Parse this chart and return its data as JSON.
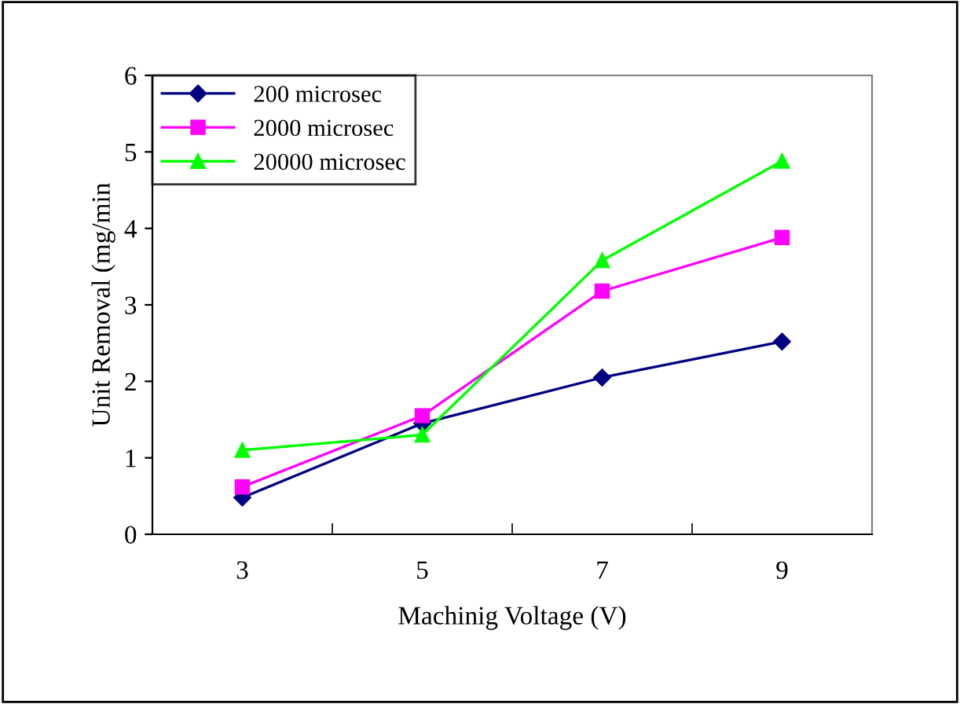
{
  "chart_data": {
    "type": "line",
    "xlabel": "Machinig Voltage (V)",
    "ylabel": "Unit Removal (mg/min",
    "categories": [
      "3",
      "5",
      "7",
      "9"
    ],
    "series": [
      {
        "name": "200 microsec",
        "color": "#000080",
        "marker": "diamond",
        "values": [
          0.48,
          1.45,
          2.05,
          2.52
        ]
      },
      {
        "name": "2000 microsec",
        "color": "#ff00ff",
        "marker": "square",
        "values": [
          0.62,
          1.55,
          3.18,
          3.88
        ]
      },
      {
        "name": "20000 microsec",
        "color": "#00ff00",
        "marker": "triangle",
        "values": [
          1.1,
          1.3,
          3.58,
          4.88
        ]
      }
    ],
    "ylim": [
      0,
      6
    ],
    "yticks": [
      0,
      1,
      2,
      3,
      4,
      5,
      6
    ],
    "grid": false,
    "legend": "top left",
    "line_style": "solid"
  }
}
